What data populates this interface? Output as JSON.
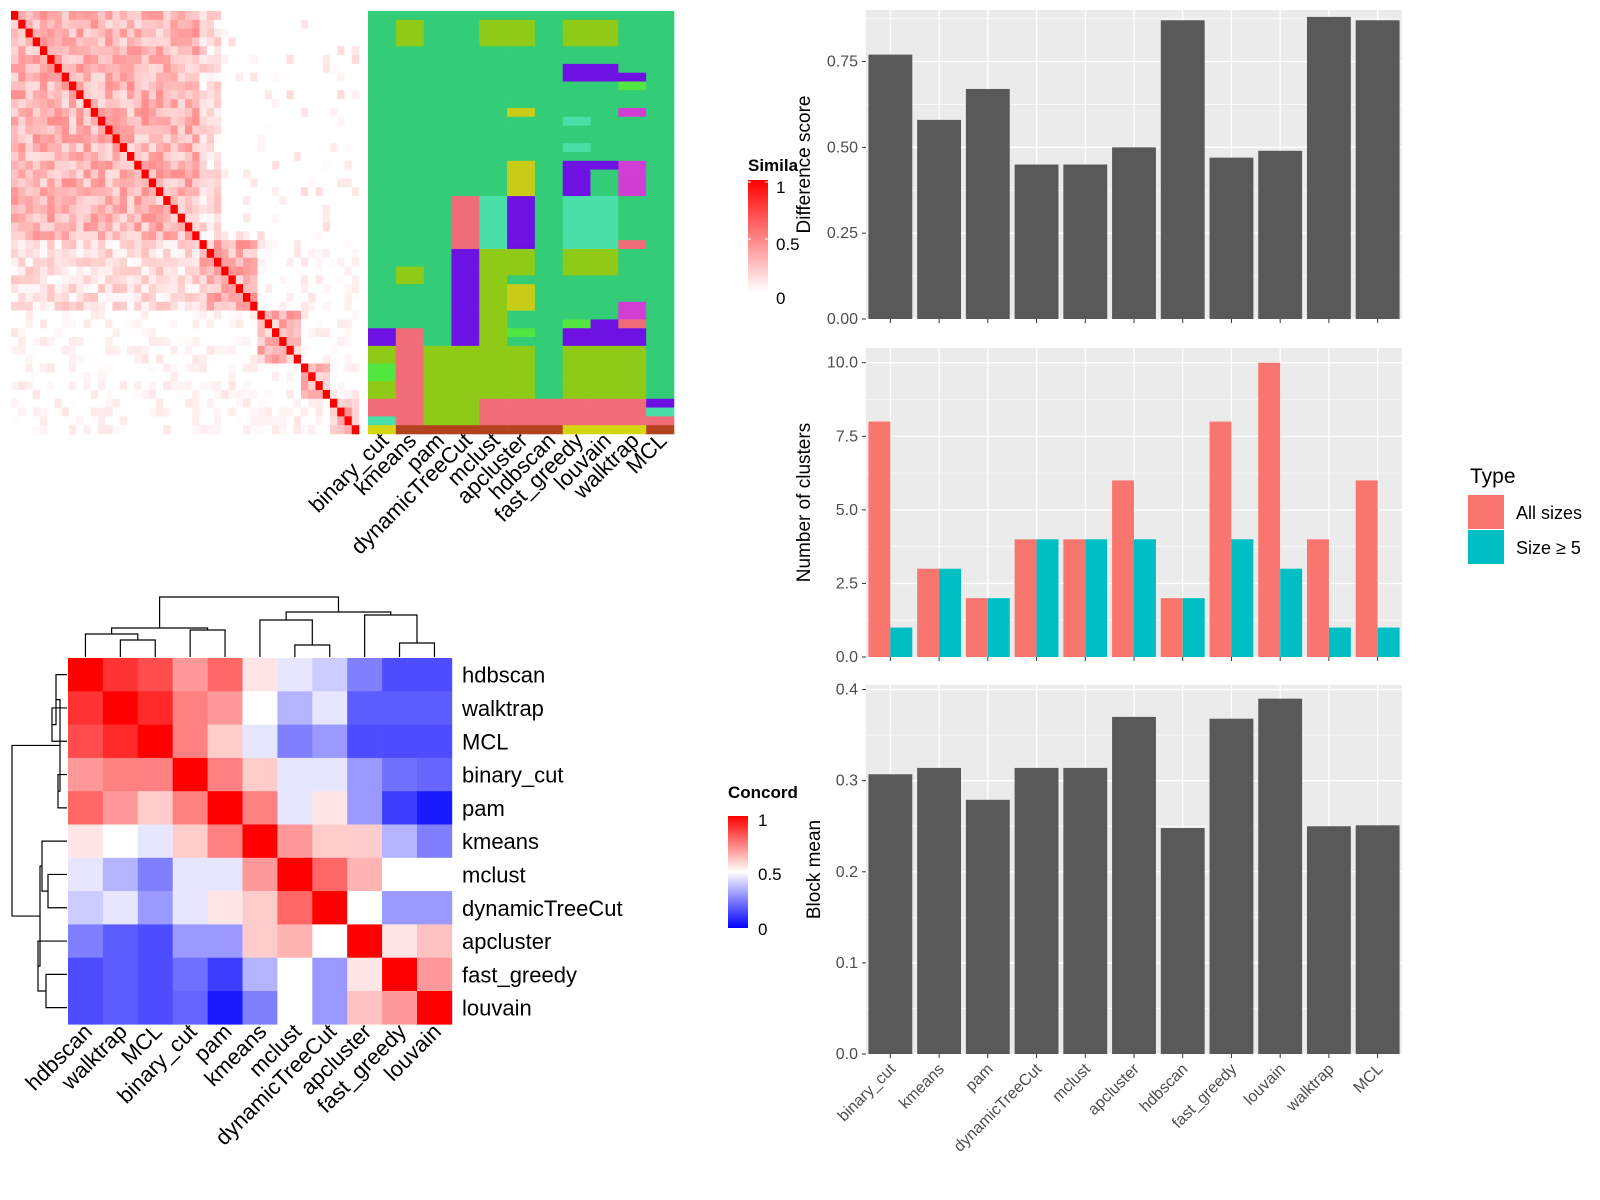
{
  "colors": {
    "panel_bg": "#ebebeb",
    "grid": "#ffffff",
    "bar_dark": "#595959",
    "all_sizes": "#f8766d",
    "size_ge_5": "#00bfc4",
    "sim_high": "#ff0000",
    "sim_low": "#ffffff",
    "conc_high": "#ff0000",
    "conc_mid": "#ffffff",
    "conc_low": "#0000ff",
    "cluster_palette": [
      "#33cc77",
      "#8fca17",
      "#f06d77",
      "#6e12e3",
      "#48dfa9",
      "#c9cc17",
      "#52e640",
      "#d23ed4",
      "#b3421d",
      "#d5d514"
    ]
  },
  "chart_data": [
    {
      "type": "heatmap",
      "panel": "cell-similarity",
      "legend_title": "Similarity",
      "legend_title_visible": "Simila",
      "legend_ticks": [
        "1",
        "0.5",
        "0"
      ],
      "matrix_size": 48,
      "note": "48x48 lower/upper similarity matrix with diagonal = 1"
    },
    {
      "type": "heatmap",
      "panel": "cluster-assignments",
      "methods": [
        "binary_cut",
        "kmeans",
        "pam",
        "dynamicTreeCut",
        "mclust",
        "apcluster",
        "hdbscan",
        "fast_greedy",
        "louvain",
        "walktrap",
        "MCL"
      ],
      "rows": 48
    },
    {
      "type": "heatmap",
      "panel": "concordance",
      "legend_title": "Concordance",
      "legend_title_visible": "Concord",
      "legend_ticks": [
        "1",
        "0.5",
        "0"
      ],
      "labels": [
        "hdbscan",
        "walktrap",
        "MCL",
        "binary_cut",
        "pam",
        "kmeans",
        "mclust",
        "dynamicTreeCut",
        "apcluster",
        "fast_greedy",
        "louvain"
      ],
      "values": [
        [
          1.0,
          0.9,
          0.85,
          0.7,
          0.8,
          0.55,
          0.45,
          0.4,
          0.25,
          0.15,
          0.15
        ],
        [
          0.9,
          1.0,
          0.92,
          0.75,
          0.7,
          0.5,
          0.35,
          0.45,
          0.18,
          0.18,
          0.18
        ],
        [
          0.85,
          0.92,
          1.0,
          0.75,
          0.6,
          0.45,
          0.25,
          0.3,
          0.15,
          0.15,
          0.15
        ],
        [
          0.7,
          0.75,
          0.75,
          1.0,
          0.75,
          0.6,
          0.45,
          0.45,
          0.3,
          0.22,
          0.2
        ],
        [
          0.8,
          0.7,
          0.6,
          0.75,
          1.0,
          0.75,
          0.45,
          0.55,
          0.3,
          0.12,
          0.05
        ],
        [
          0.55,
          0.5,
          0.45,
          0.6,
          0.75,
          1.0,
          0.7,
          0.6,
          0.6,
          0.35,
          0.25
        ],
        [
          0.45,
          0.35,
          0.25,
          0.45,
          0.45,
          0.7,
          1.0,
          0.8,
          0.65,
          0.5,
          0.5
        ],
        [
          0.4,
          0.45,
          0.3,
          0.45,
          0.55,
          0.6,
          0.8,
          1.0,
          0.5,
          0.3,
          0.3
        ],
        [
          0.25,
          0.18,
          0.15,
          0.3,
          0.3,
          0.6,
          0.65,
          0.5,
          1.0,
          0.55,
          0.62
        ],
        [
          0.15,
          0.18,
          0.15,
          0.22,
          0.12,
          0.35,
          0.5,
          0.3,
          0.55,
          1.0,
          0.7
        ],
        [
          0.15,
          0.18,
          0.15,
          0.2,
          0.05,
          0.25,
          0.5,
          0.3,
          0.62,
          0.7,
          1.0
        ]
      ]
    },
    {
      "type": "bar",
      "panel": "difference-score",
      "categories": [
        "binary_cut",
        "kmeans",
        "pam",
        "dynamicTreeCut",
        "mclust",
        "apcluster",
        "hdbscan",
        "fast_greedy",
        "louvain",
        "walktrap",
        "MCL"
      ],
      "values": [
        0.77,
        0.58,
        0.67,
        0.45,
        0.45,
        0.5,
        0.87,
        0.47,
        0.49,
        0.88,
        0.87
      ],
      "ylabel": "Difference score",
      "ylim": [
        0,
        0.9
      ],
      "yticks": [
        0.0,
        0.25,
        0.5,
        0.75
      ],
      "ytick_labels": [
        "0.00",
        "0.25",
        "0.50",
        "0.75"
      ],
      "grid": true
    },
    {
      "type": "bar",
      "panel": "number-of-clusters",
      "categories": [
        "binary_cut",
        "kmeans",
        "pam",
        "dynamicTreeCut",
        "mclust",
        "apcluster",
        "hdbscan",
        "fast_greedy",
        "louvain",
        "walktrap",
        "MCL"
      ],
      "series": [
        {
          "name": "All sizes",
          "values": [
            8,
            3,
            2,
            4,
            4,
            6,
            2,
            8,
            10,
            4,
            6
          ]
        },
        {
          "name": "Size ≥ 5",
          "values": [
            1,
            3,
            2,
            4,
            4,
            4,
            2,
            4,
            3,
            1,
            1
          ]
        }
      ],
      "ylabel": "Number of clusters",
      "ylim": [
        0,
        10.5
      ],
      "yticks": [
        0,
        2.5,
        5,
        7.5,
        10
      ],
      "ytick_labels": [
        "0.0",
        "2.5",
        "5.0",
        "7.5",
        "10.0"
      ],
      "legend_title": "Type",
      "legend_position": "right",
      "grid": true
    },
    {
      "type": "bar",
      "panel": "block-mean",
      "categories": [
        "binary_cut",
        "kmeans",
        "pam",
        "dynamicTreeCut",
        "mclust",
        "apcluster",
        "hdbscan",
        "fast_greedy",
        "louvain",
        "walktrap",
        "MCL"
      ],
      "values": [
        0.307,
        0.314,
        0.279,
        0.314,
        0.314,
        0.37,
        0.248,
        0.368,
        0.39,
        0.25,
        0.251
      ],
      "ylabel": "Block mean",
      "ylim": [
        0,
        0.405
      ],
      "yticks": [
        0.0,
        0.1,
        0.2,
        0.3,
        0.4
      ],
      "ytick_labels": [
        "0.0",
        "0.1",
        "0.2",
        "0.3",
        "0.4"
      ],
      "grid": true
    }
  ]
}
